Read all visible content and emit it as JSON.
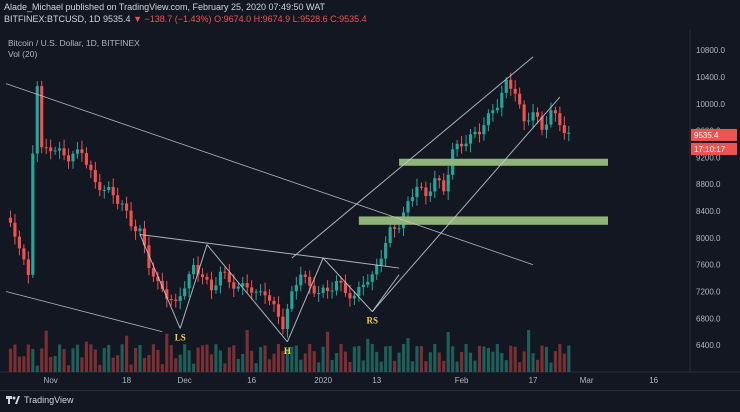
{
  "header": {
    "line1": "Alade_Michael published on TradingView.com, February 25, 2020 07:49:50 WAT",
    "symbol": "BITFINEX:BTCUSD, 1D",
    "price": "9535.4",
    "change": "▼ −138.7 (−1.43%)",
    "ohlc": "O:9674.0 H:9674.9 L:9528.6 C:9535.4"
  },
  "chart_title": "Bitcoin / U.S. Dollar, 1D, BITFINEX",
  "vol_label": "Vol (20)",
  "price_tag": "9535.4",
  "time_tag": "17:10:17",
  "footer_logo": "TradingView",
  "colors": {
    "up": "#26a69a",
    "down": "#ef5350",
    "zone": "#8fb47a",
    "bg": "#131722"
  },
  "annotations": [
    {
      "label": "LS",
      "date_index": 39,
      "price": 6650
    },
    {
      "label": "H",
      "date_index": 63,
      "price": 6450
    },
    {
      "label": "RS",
      "date_index": 82,
      "price": 6900
    }
  ],
  "chart_data": {
    "type": "candlestick",
    "ylim": [
      6000,
      11100
    ],
    "y_ticks": [
      6400,
      6800,
      7200,
      7600,
      8000,
      8400,
      8800,
      9200,
      9600,
      10000,
      10400,
      10800
    ],
    "x_ticks": [
      {
        "label": "Nov",
        "index": 10
      },
      {
        "label": "18",
        "index": 27
      },
      {
        "label": "Dec",
        "index": 40
      },
      {
        "label": "16",
        "index": 55
      },
      {
        "label": "2020",
        "index": 71
      },
      {
        "label": "13",
        "index": 83
      },
      {
        "label": "Feb",
        "index": 102
      },
      {
        "label": "17",
        "index": 118
      },
      {
        "label": "Mar",
        "index": 130
      },
      {
        "label": "16",
        "index": 145
      }
    ],
    "close_points": [
      [
        0,
        8300
      ],
      [
        3,
        7900
      ],
      [
        5,
        7400
      ],
      [
        6,
        9300
      ],
      [
        7,
        10300
      ],
      [
        8,
        9300
      ],
      [
        10,
        9350
      ],
      [
        14,
        9200
      ],
      [
        17,
        9300
      ],
      [
        20,
        8800
      ],
      [
        23,
        8700
      ],
      [
        26,
        8500
      ],
      [
        28,
        8200
      ],
      [
        30,
        8100
      ],
      [
        32,
        7600
      ],
      [
        34,
        7300
      ],
      [
        36,
        7150
      ],
      [
        38,
        7000
      ],
      [
        40,
        7300
      ],
      [
        42,
        7550
      ],
      [
        44,
        7450
      ],
      [
        46,
        7200
      ],
      [
        48,
        7500
      ],
      [
        50,
        7350
      ],
      [
        52,
        7250
      ],
      [
        54,
        7300
      ],
      [
        56,
        7150
      ],
      [
        58,
        7200
      ],
      [
        60,
        6950
      ],
      [
        62,
        6700
      ],
      [
        64,
        7150
      ],
      [
        66,
        7500
      ],
      [
        68,
        7250
      ],
      [
        70,
        7200
      ],
      [
        72,
        7200
      ],
      [
        74,
        7350
      ],
      [
        76,
        7200
      ],
      [
        78,
        7100
      ],
      [
        80,
        7350
      ],
      [
        82,
        7400
      ],
      [
        84,
        7750
      ],
      [
        86,
        8100
      ],
      [
        88,
        8200
      ],
      [
        90,
        8500
      ],
      [
        92,
        8800
      ],
      [
        94,
        8600
      ],
      [
        96,
        8900
      ],
      [
        98,
        8700
      ],
      [
        100,
        9300
      ],
      [
        102,
        9400
      ],
      [
        104,
        9500
      ],
      [
        106,
        9600
      ],
      [
        108,
        9800
      ],
      [
        110,
        10000
      ],
      [
        112,
        10300
      ],
      [
        114,
        10200
      ],
      [
        116,
        9700
      ],
      [
        118,
        9900
      ],
      [
        120,
        9600
      ],
      [
        122,
        9900
      ],
      [
        124,
        9700
      ],
      [
        126,
        9535
      ]
    ],
    "zones": [
      {
        "from": 9180,
        "to": 9120,
        "start_index": 88
      },
      {
        "from": 8320,
        "to": 8240,
        "start_index": 79
      }
    ]
  }
}
